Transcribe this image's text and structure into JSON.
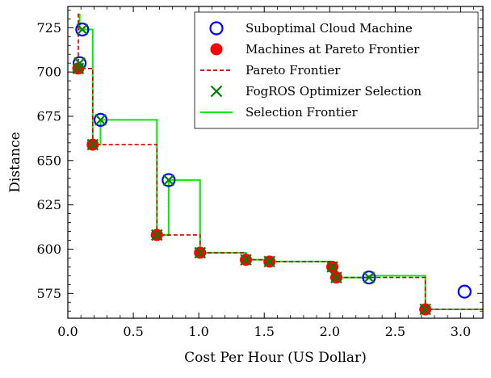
{
  "chart_data": {
    "type": "scatter",
    "xlabel": "Cost Per Hour (US Dollar)",
    "ylabel": "Distance",
    "xlim": [
      0.0,
      3.17
    ],
    "ylim": [
      561,
      737
    ],
    "xticks": [
      0.0,
      0.5,
      1.0,
      1.5,
      2.0,
      2.5,
      3.0
    ],
    "xtick_labels": [
      "0.0",
      "0.5",
      "1.0",
      "1.5",
      "2.0",
      "2.5",
      "3.0"
    ],
    "yticks": [
      575,
      600,
      625,
      650,
      675,
      700,
      725
    ],
    "ytick_labels": [
      "575",
      "600",
      "625",
      "650",
      "675",
      "700",
      "725"
    ],
    "legend_position": "top-right",
    "legend": [
      "Suboptimal Cloud Machine",
      "Machines at Pareto Frontier",
      "Pareto Frontier",
      "FogROS Optimizer Selection",
      "Selection Frontier"
    ],
    "series": [
      {
        "name": "Suboptimal Cloud Machine",
        "marker": "open-circle",
        "color": "#0000ff",
        "points": [
          [
            0.11,
            724
          ],
          [
            0.09,
            705
          ],
          [
            0.25,
            673
          ],
          [
            0.77,
            639
          ],
          [
            2.3,
            584
          ],
          [
            3.03,
            576
          ]
        ]
      },
      {
        "name": "Machines at Pareto Frontier",
        "marker": "filled-circle",
        "color": "#ff0000",
        "points": [
          [
            0.08,
            702
          ],
          [
            0.19,
            659
          ],
          [
            0.68,
            608
          ],
          [
            1.01,
            598
          ],
          [
            1.36,
            594
          ],
          [
            1.54,
            593
          ],
          [
            2.02,
            590
          ],
          [
            2.05,
            584
          ],
          [
            2.73,
            566
          ]
        ]
      },
      {
        "name": "Pareto Frontier",
        "style": "dashed",
        "color": "#cc0000",
        "points": [
          [
            0.08,
            733
          ],
          [
            0.08,
            702
          ],
          [
            0.19,
            702
          ],
          [
            0.19,
            659
          ],
          [
            0.68,
            659
          ],
          [
            0.68,
            608
          ],
          [
            1.01,
            608
          ],
          [
            1.01,
            598
          ],
          [
            1.36,
            598
          ],
          [
            1.36,
            594
          ],
          [
            1.54,
            594
          ],
          [
            1.54,
            593
          ],
          [
            2.02,
            593
          ],
          [
            2.02,
            590
          ],
          [
            2.05,
            590
          ],
          [
            2.05,
            584
          ],
          [
            2.73,
            584
          ],
          [
            2.73,
            566
          ],
          [
            3.17,
            566
          ]
        ]
      },
      {
        "name": "FogROS Optimizer Selection",
        "marker": "x",
        "color": "#008000",
        "points": [
          [
            0.08,
            702
          ],
          [
            0.09,
            705
          ],
          [
            0.11,
            724
          ],
          [
            0.19,
            659
          ],
          [
            0.25,
            673
          ],
          [
            0.68,
            608
          ],
          [
            0.77,
            639
          ],
          [
            1.01,
            598
          ],
          [
            1.36,
            594
          ],
          [
            1.54,
            593
          ],
          [
            2.02,
            590
          ],
          [
            2.05,
            584
          ],
          [
            2.3,
            584
          ],
          [
            2.73,
            566
          ]
        ]
      },
      {
        "name": "Selection Frontier",
        "style": "solid",
        "color": "#00ee00",
        "points": [
          [
            0.09,
            733
          ],
          [
            0.09,
            724
          ],
          [
            0.19,
            724
          ],
          [
            0.19,
            659
          ],
          [
            0.25,
            659
          ],
          [
            0.25,
            673
          ],
          [
            0.68,
            673
          ],
          [
            0.68,
            608
          ],
          [
            0.77,
            608
          ],
          [
            0.77,
            639
          ],
          [
            1.01,
            639
          ],
          [
            1.01,
            598
          ],
          [
            1.36,
            598
          ],
          [
            1.36,
            594
          ],
          [
            1.54,
            594
          ],
          [
            1.54,
            593
          ],
          [
            2.02,
            593
          ],
          [
            2.02,
            590
          ],
          [
            2.05,
            590
          ],
          [
            2.05,
            584
          ],
          [
            2.3,
            584
          ],
          [
            2.3,
            585
          ],
          [
            2.73,
            585
          ],
          [
            2.73,
            566
          ],
          [
            3.17,
            566
          ]
        ]
      }
    ]
  }
}
